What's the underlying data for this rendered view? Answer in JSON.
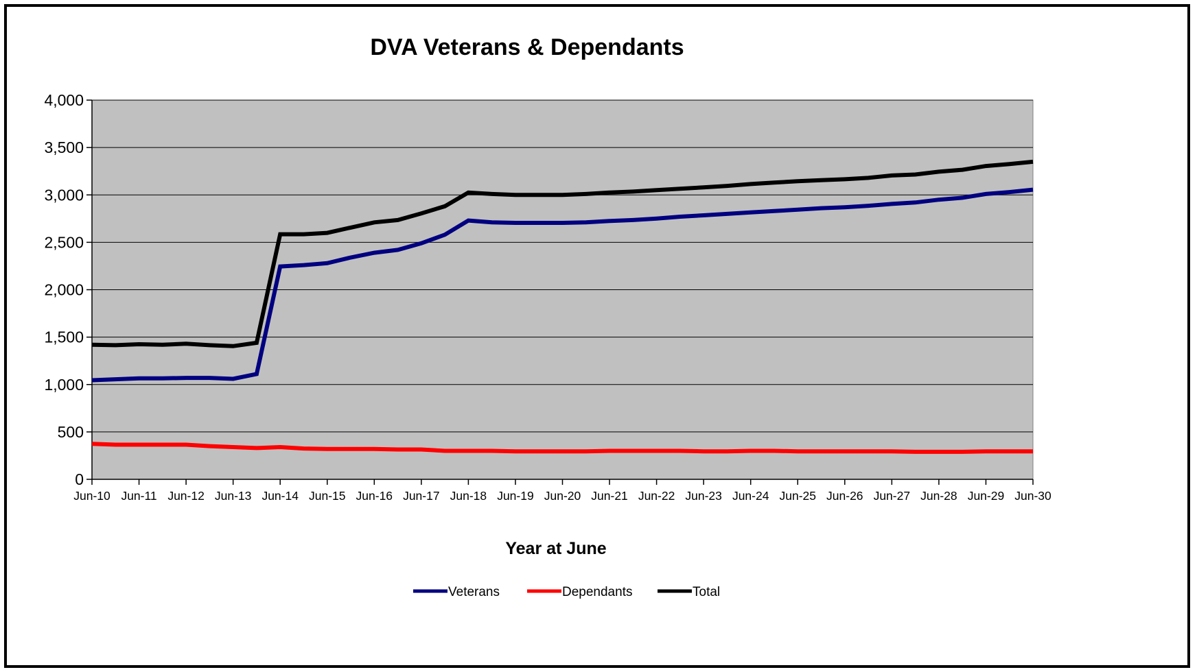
{
  "chart_data": {
    "type": "line",
    "title": "DVA Veterans & Dependants",
    "xlabel": "Year at June",
    "ylabel": "",
    "ylim": [
      0,
      4000
    ],
    "yticks": [
      0,
      500,
      1000,
      1500,
      2000,
      2500,
      3000,
      3500,
      4000
    ],
    "ytick_labels": [
      "0",
      "500",
      "1,000",
      "1,500",
      "2,000",
      "2,500",
      "3,000",
      "3,500",
      "4,000"
    ],
    "categories": [
      "Jun-10",
      "Jun-11",
      "Jun-12",
      "Jun-13",
      "Jun-14",
      "Jun-15",
      "Jun-16",
      "Jun-17",
      "Jun-18",
      "Jun-19",
      "Jun-20",
      "Jun-21",
      "Jun-22",
      "Jun-23",
      "Jun-24",
      "Jun-25",
      "Jun-26",
      "Jun-27",
      "Jun-28",
      "Jun-29",
      "Jun-30"
    ],
    "x": [
      0,
      0.5,
      1,
      1.5,
      2,
      2.5,
      3,
      3.5,
      4,
      4.5,
      5,
      5.5,
      6,
      6.5,
      7,
      7.5,
      8,
      8.5,
      9,
      9.5,
      10,
      10.5,
      11,
      11.5,
      12,
      12.5,
      13,
      13.5,
      14,
      14.5,
      15,
      15.5,
      16,
      16.5,
      17,
      17.5,
      18,
      18.5,
      19,
      19.5,
      20
    ],
    "grid": true,
    "plot_background": "#c0c0c0",
    "legend_position": "bottom",
    "series": [
      {
        "name": "Veterans",
        "color": "#000080",
        "values": [
          1045,
          1055,
          1065,
          1065,
          1070,
          1070,
          1060,
          1110,
          2245,
          2260,
          2280,
          2340,
          2390,
          2420,
          2490,
          2580,
          2730,
          2710,
          2705,
          2705,
          2705,
          2710,
          2725,
          2735,
          2750,
          2770,
          2785,
          2800,
          2815,
          2830,
          2845,
          2860,
          2870,
          2885,
          2905,
          2920,
          2950,
          2970,
          3010,
          3030,
          3055
        ]
      },
      {
        "name": "Dependants",
        "color": "#ff0000",
        "values": [
          375,
          365,
          365,
          365,
          365,
          350,
          340,
          330,
          340,
          325,
          320,
          320,
          320,
          315,
          315,
          300,
          300,
          300,
          295,
          295,
          295,
          295,
          300,
          300,
          300,
          300,
          295,
          295,
          300,
          300,
          295,
          295,
          295,
          295,
          295,
          290,
          290,
          290,
          295,
          295,
          295
        ]
      },
      {
        "name": "Total",
        "color": "#000000",
        "values": [
          1420,
          1415,
          1425,
          1420,
          1430,
          1415,
          1405,
          1440,
          2585,
          2585,
          2600,
          2655,
          2710,
          2735,
          2805,
          2880,
          3025,
          3010,
          3000,
          3000,
          3000,
          3010,
          3025,
          3035,
          3050,
          3065,
          3080,
          3095,
          3115,
          3130,
          3145,
          3155,
          3165,
          3180,
          3205,
          3215,
          3245,
          3265,
          3305,
          3325,
          3350
        ]
      }
    ]
  }
}
